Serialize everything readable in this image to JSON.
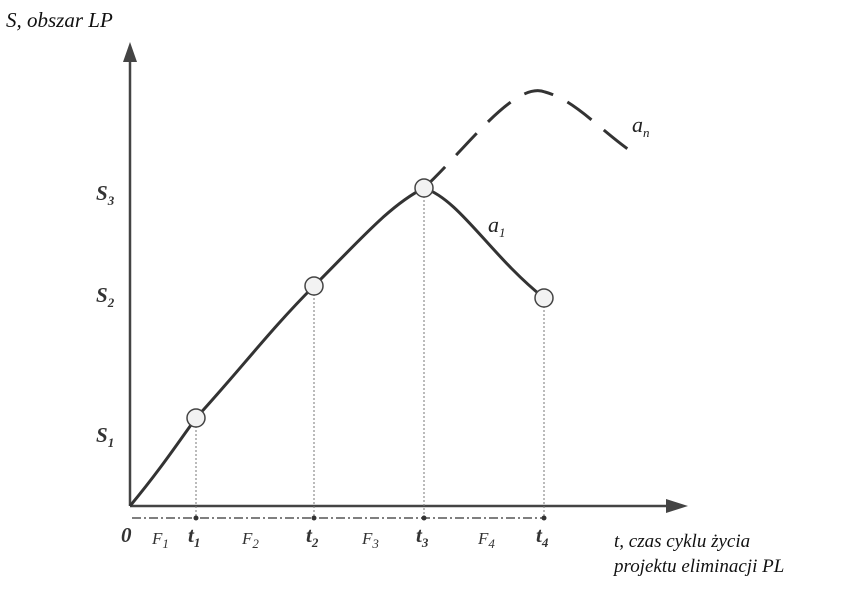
{
  "y_axis_title": "S, obszar LP",
  "x_axis_title_line1": "t, czas cyklu życia",
  "x_axis_title_line2": "projektu eliminacji PL",
  "origin_label": "0",
  "y_levels": [
    {
      "main": "S",
      "sub": "1"
    },
    {
      "main": "S",
      "sub": "2"
    },
    {
      "main": "S",
      "sub": "3"
    }
  ],
  "time_points": [
    {
      "main": "t",
      "sub": "1"
    },
    {
      "main": "t",
      "sub": "2"
    },
    {
      "main": "t",
      "sub": "3"
    },
    {
      "main": "t",
      "sub": "4"
    }
  ],
  "phases": [
    {
      "main": "F",
      "sub": "1"
    },
    {
      "main": "F",
      "sub": "2"
    },
    {
      "main": "F",
      "sub": "3"
    },
    {
      "main": "F",
      "sub": "4"
    }
  ],
  "curves": [
    {
      "main": "a",
      "sub": "1"
    },
    {
      "main": "a",
      "sub": "n"
    }
  ]
}
